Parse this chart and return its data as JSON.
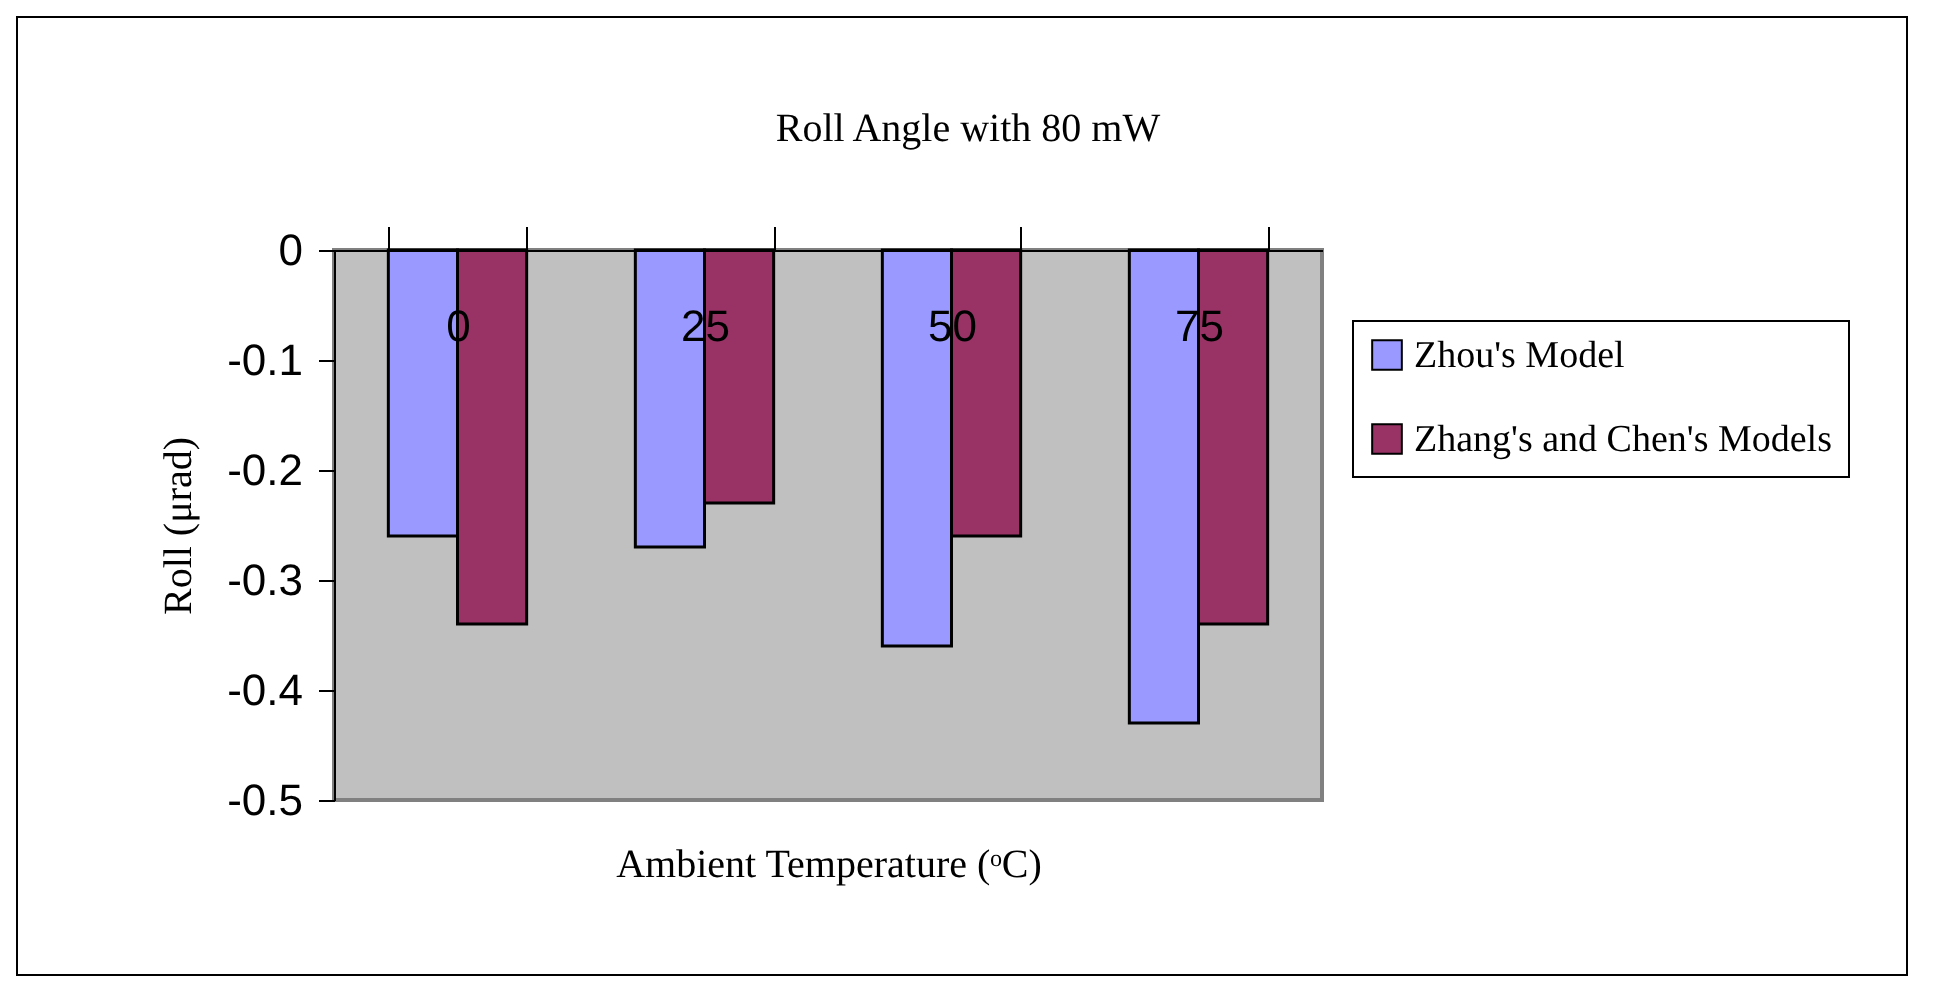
{
  "chart_data": {
    "type": "bar",
    "title": "Roll Angle with 80 mW",
    "xlabel": "Ambient Temperature (ᵒC)",
    "ylabel": "Roll (μrad)",
    "categories": [
      "0",
      "25",
      "50",
      "75"
    ],
    "series": [
      {
        "name": "Zhou's Model",
        "color": "#9999ff",
        "values": [
          -0.26,
          -0.27,
          -0.36,
          -0.43
        ]
      },
      {
        "name": "Zhang's and Chen's Models",
        "color": "#993366",
        "values": [
          -0.34,
          -0.23,
          -0.26,
          -0.34
        ]
      }
    ],
    "ylim": [
      -0.5,
      0
    ],
    "yticks": [
      0,
      -0.1,
      -0.2,
      -0.3,
      -0.4,
      -0.5
    ],
    "grid": false,
    "legend": "right"
  }
}
